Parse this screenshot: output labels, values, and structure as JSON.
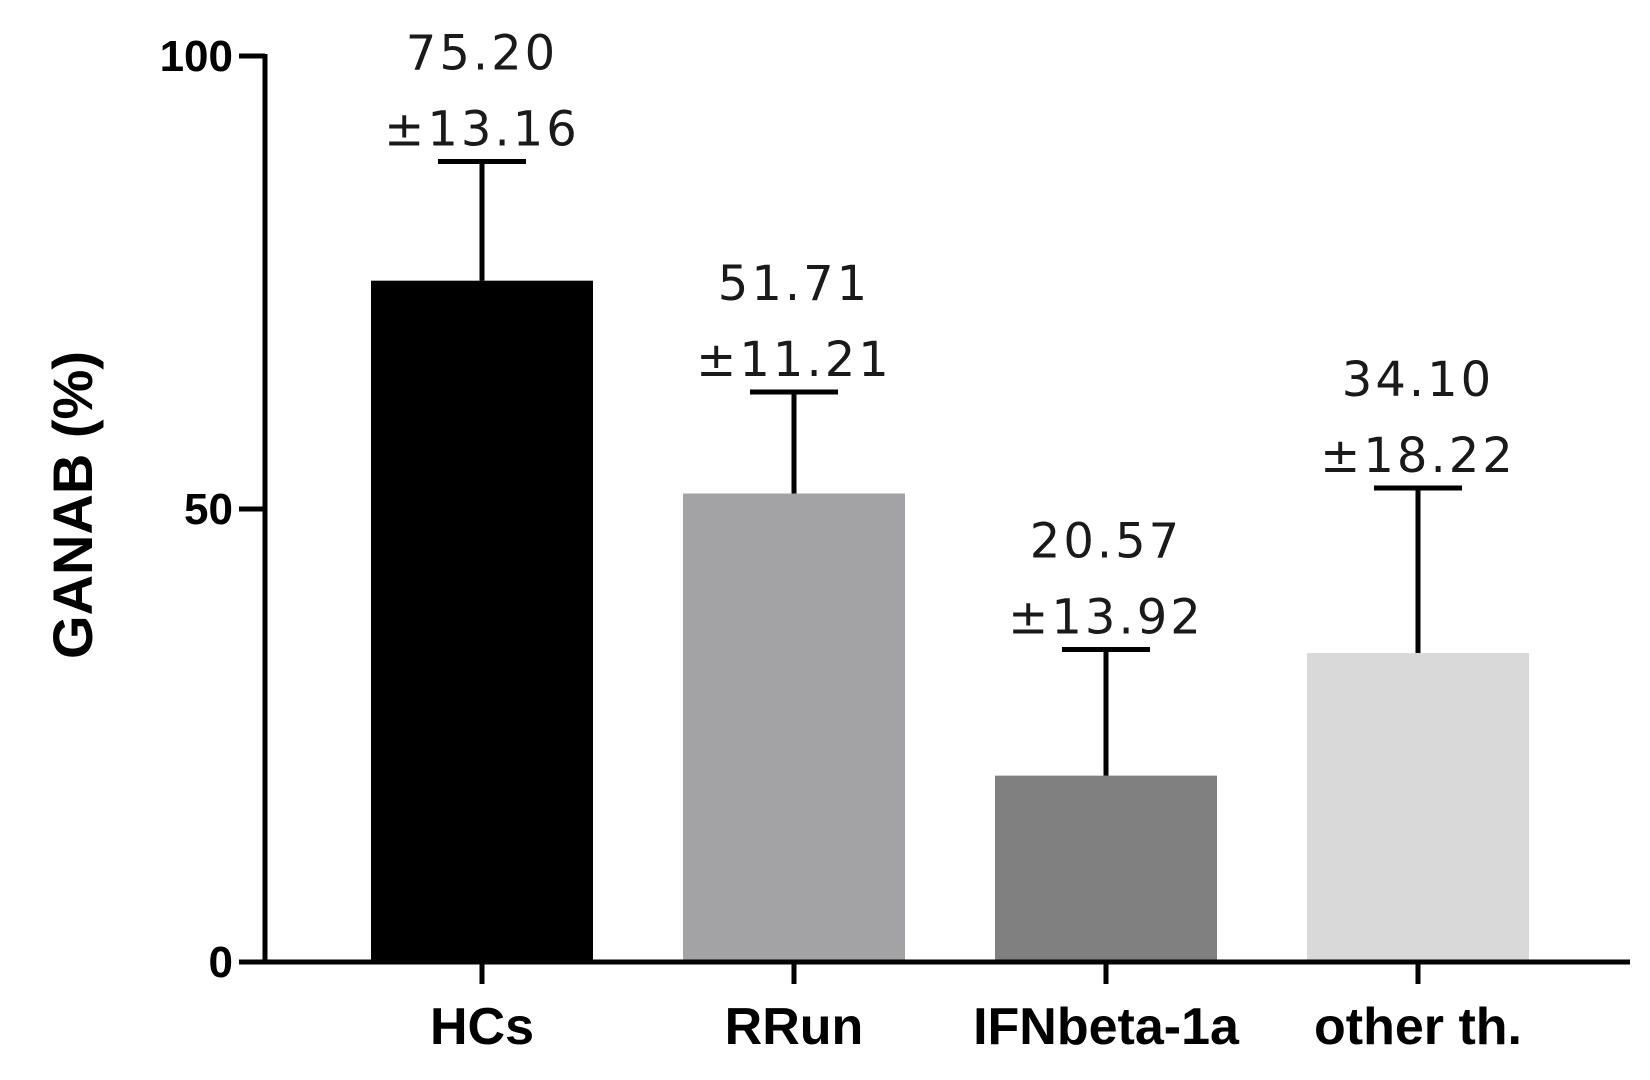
{
  "chart_data": {
    "type": "bar",
    "title": "",
    "xlabel": "",
    "ylabel": "GANAB (%)",
    "ylim": [
      0,
      100
    ],
    "yticks": [
      "0",
      "50",
      "100"
    ],
    "categories": [
      "HCs",
      "RRun",
      "IFNbeta-1a",
      "other th."
    ],
    "values": [
      75.2,
      51.71,
      20.57,
      34.1
    ],
    "errors": [
      13.16,
      11.21,
      13.92,
      18.22
    ],
    "value_labels": [
      "75.20",
      "51.71",
      "20.57",
      "34.10"
    ],
    "error_labels": [
      "±13.16",
      "±11.21",
      "±13.92",
      "±18.22"
    ],
    "colors": [
      "#000000",
      "#a3a3a6",
      "#808080",
      "#d9d9d9"
    ],
    "grid": false,
    "legend": "none"
  }
}
